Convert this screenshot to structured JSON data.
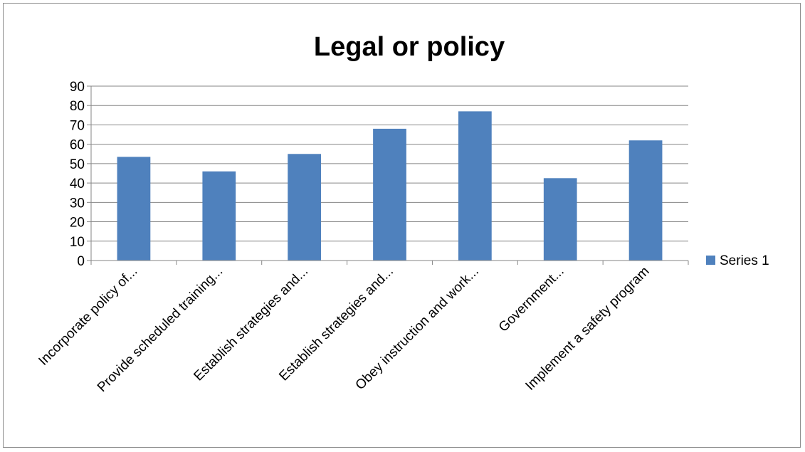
{
  "chart_data": {
    "type": "bar",
    "title": "Legal or policy",
    "xlabel": "",
    "ylabel": "",
    "categories": [
      "Incorporate policy of...",
      "Provide scheduled training...",
      "Establish strategies and...",
      "Establish strategies and...",
      "Obey instruction and work...",
      "Government...",
      "Implement a safety program"
    ],
    "series": [
      {
        "name": "Series 1",
        "values": [
          53.5,
          46,
          55,
          68,
          77,
          42.5,
          62
        ]
      }
    ],
    "ylim": [
      0,
      90
    ],
    "yticks": [
      "0",
      "10",
      "20",
      "30",
      "40",
      "50",
      "60",
      "70",
      "80",
      "90"
    ],
    "grid": true,
    "legend_position": "right",
    "colors": {
      "bar": "#4F81BD",
      "grid": "#868686",
      "axis": "#868686"
    }
  }
}
